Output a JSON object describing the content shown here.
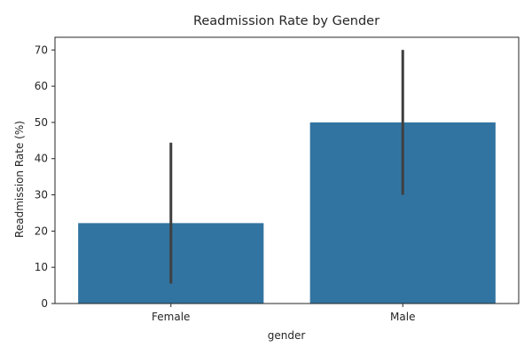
{
  "chart_data": {
    "type": "bar",
    "title": "Readmission Rate by Gender",
    "xlabel": "gender",
    "ylabel": "Readmission Rate (%)",
    "categories": [
      "Female",
      "Male"
    ],
    "values": [
      22.2,
      50.0
    ],
    "error_bars": [
      {
        "low": 5.5,
        "high": 44.4
      },
      {
        "low": 30.0,
        "high": 70.0
      }
    ],
    "ylim": [
      0,
      73.5
    ],
    "yticks": [
      0,
      10,
      20,
      30,
      40,
      50,
      60,
      70
    ],
    "grid": false,
    "bar_color": "#3274a1",
    "error_color": "#3f3f3f"
  }
}
